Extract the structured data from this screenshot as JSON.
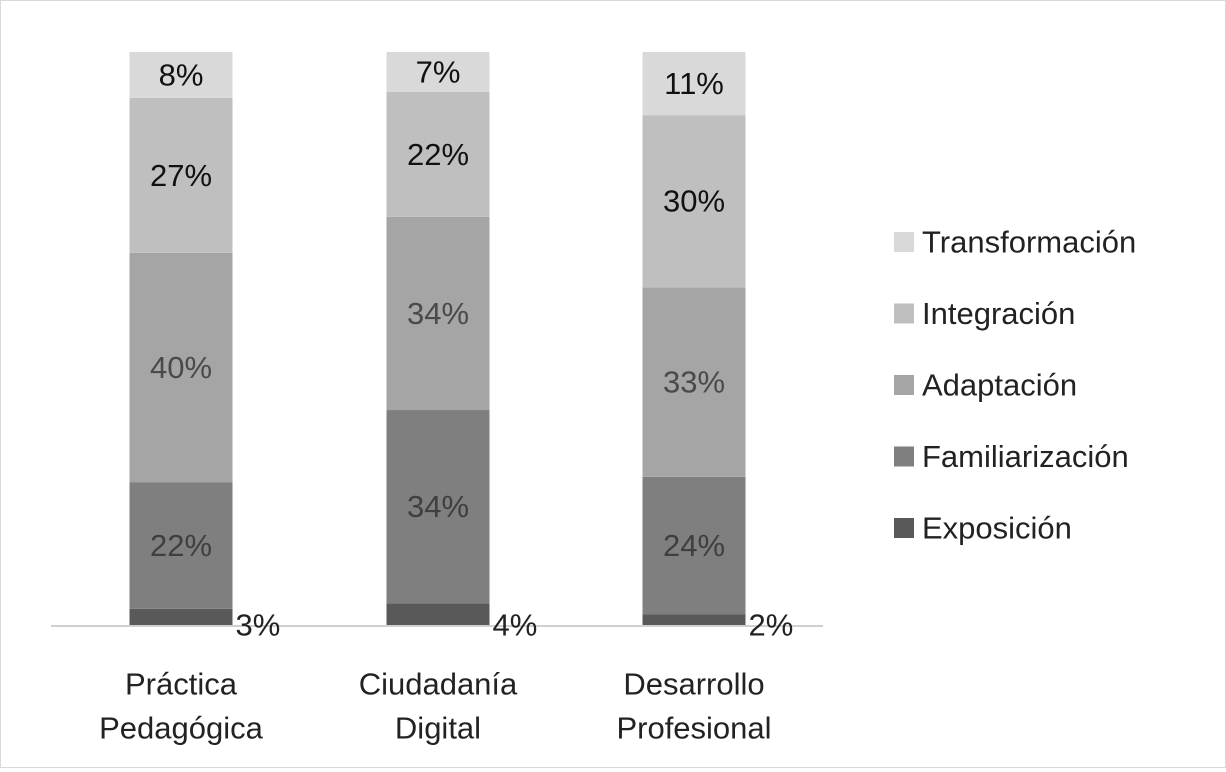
{
  "chart_data": {
    "type": "bar",
    "stacked": true,
    "percent_stacked": true,
    "categories": [
      [
        "Práctica",
        "Pedagógica"
      ],
      [
        "Ciudadanía",
        "Digital"
      ],
      [
        "Desarrollo",
        "Profesional"
      ]
    ],
    "series": [
      {
        "name": "Exposición",
        "values": [
          3,
          4,
          2
        ],
        "labels": [
          "3%",
          "4%",
          "2%"
        ],
        "color": "#595959",
        "label_color": "#222222",
        "label_outside": true
      },
      {
        "name": "Familiarización",
        "values": [
          22,
          34,
          24
        ],
        "labels": [
          "22%",
          "34%",
          "24%"
        ],
        "color": "#7f7f7f",
        "label_color": "#3f3f3f"
      },
      {
        "name": "Adaptación",
        "values": [
          40,
          34,
          33
        ],
        "labels": [
          "40%",
          "34%",
          "33%"
        ],
        "color": "#a5a5a5",
        "label_color": "#4a4a4a"
      },
      {
        "name": "Integración",
        "values": [
          27,
          22,
          30
        ],
        "labels": [
          "27%",
          "22%",
          "30%"
        ],
        "color": "#bfbfbf",
        "label_color": "#111111"
      },
      {
        "name": "Transformación",
        "values": [
          8,
          7,
          11
        ],
        "labels": [
          "8%",
          "7%",
          "11%"
        ],
        "color": "#d9d9d9",
        "label_color": "#111111"
      }
    ],
    "legend_position": "right",
    "legend_order": [
      "Transformación",
      "Integración",
      "Adaptación",
      "Familiarización",
      "Exposición"
    ],
    "grid": false,
    "title": "",
    "xlabel": "",
    "ylabel": ""
  }
}
